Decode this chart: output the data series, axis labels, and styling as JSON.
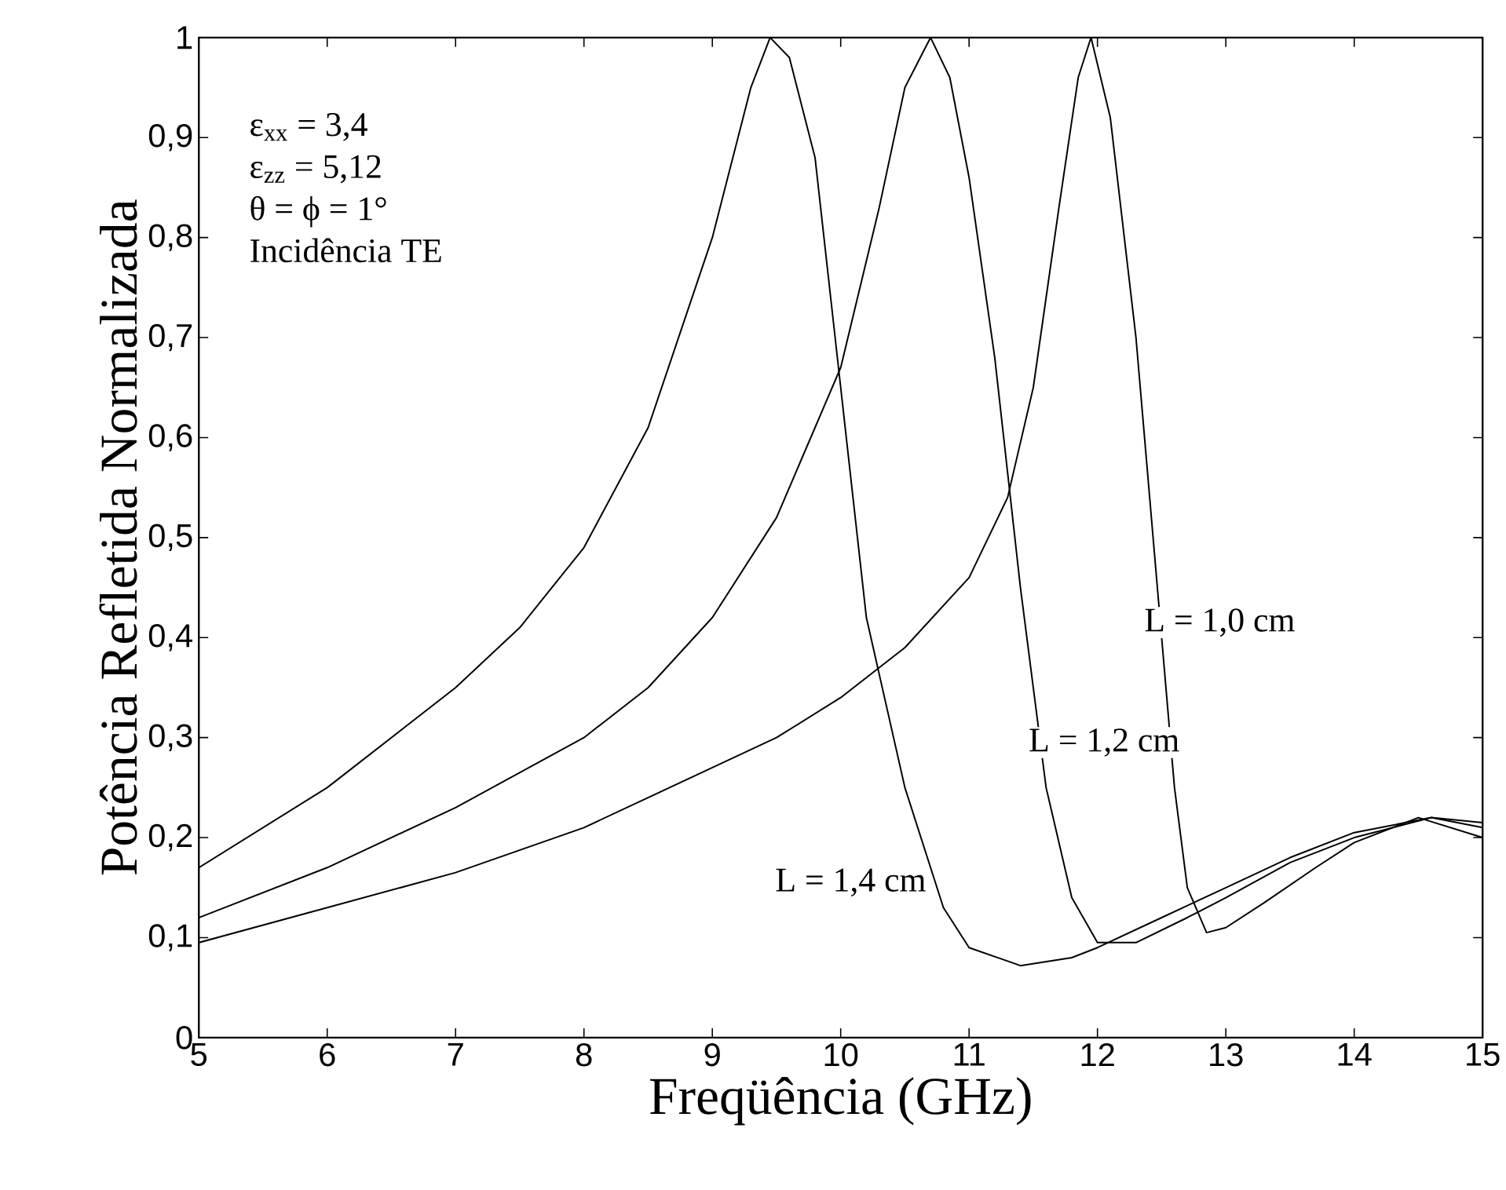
{
  "chart_data": {
    "type": "line",
    "xlabel": "Freqüência (GHz)",
    "ylabel": "Potência Refletida Normalizada",
    "xlim": [
      5,
      15
    ],
    "ylim": [
      0,
      1
    ],
    "xticks": [
      5,
      6,
      7,
      8,
      9,
      10,
      11,
      12,
      13,
      14,
      15
    ],
    "yticks": [
      0,
      {
        "value": 0.1,
        "label": "0,1"
      },
      {
        "value": 0.2,
        "label": "0,2"
      },
      {
        "value": 0.3,
        "label": "0,3"
      },
      {
        "value": 0.4,
        "label": "0,4"
      },
      {
        "value": 0.5,
        "label": "0,5"
      },
      {
        "value": 0.6,
        "label": "0,6"
      },
      {
        "value": 0.7,
        "label": "0,7"
      },
      {
        "value": 0.8,
        "label": "0,8"
      },
      {
        "value": 0.9,
        "label": "0,9"
      },
      1
    ],
    "grid": false,
    "legend": false,
    "marker": "none",
    "line_style": "solid",
    "annotations": [
      "ε$_{xx}$ = 3,4",
      "ε$_{zz}$ = 5,12",
      "θ = ϕ = 1°",
      "Incidência TE"
    ],
    "series": [
      {
        "name": "L = 1,0 cm",
        "color": "#000000",
        "x": [
          5,
          6,
          7,
          8,
          9,
          9.5,
          10,
          10.5,
          11,
          11.3,
          11.5,
          11.7,
          11.85,
          11.95,
          12.1,
          12.3,
          12.5,
          12.6,
          12.7,
          12.85,
          13,
          13.3,
          13.7,
          14,
          14.5,
          15
        ],
        "values": [
          0.095,
          0.13,
          0.165,
          0.21,
          0.27,
          0.3,
          0.34,
          0.39,
          0.46,
          0.54,
          0.65,
          0.83,
          0.96,
          1.0,
          0.92,
          0.7,
          0.4,
          0.25,
          0.15,
          0.105,
          0.11,
          0.135,
          0.17,
          0.195,
          0.22,
          0.2
        ]
      },
      {
        "name": "L = 1,2 cm",
        "color": "#000000",
        "x": [
          5,
          6,
          7,
          8,
          8.5,
          9,
          9.5,
          10,
          10.3,
          10.5,
          10.7,
          10.85,
          11,
          11.2,
          11.4,
          11.6,
          11.8,
          12,
          12.3,
          12.7,
          13,
          13.5,
          14,
          14.6,
          15
        ],
        "values": [
          0.12,
          0.17,
          0.23,
          0.3,
          0.35,
          0.42,
          0.52,
          0.67,
          0.83,
          0.95,
          1.0,
          0.96,
          0.86,
          0.68,
          0.45,
          0.25,
          0.14,
          0.095,
          0.095,
          0.12,
          0.14,
          0.175,
          0.2,
          0.22,
          0.215
        ]
      },
      {
        "name": "L = 1,4 cm",
        "color": "#000000",
        "x": [
          5,
          6,
          7,
          7.5,
          8,
          8.5,
          9,
          9.3,
          9.45,
          9.6,
          9.8,
          10,
          10.2,
          10.5,
          10.8,
          11,
          11.4,
          11.8,
          12,
          12.5,
          13,
          13.5,
          14,
          14.6,
          15
        ],
        "values": [
          0.17,
          0.25,
          0.35,
          0.41,
          0.49,
          0.61,
          0.8,
          0.95,
          1.0,
          0.98,
          0.88,
          0.65,
          0.42,
          0.25,
          0.13,
          0.09,
          0.072,
          0.08,
          0.09,
          0.12,
          0.15,
          0.18,
          0.205,
          0.22,
          0.21
        ]
      }
    ]
  }
}
